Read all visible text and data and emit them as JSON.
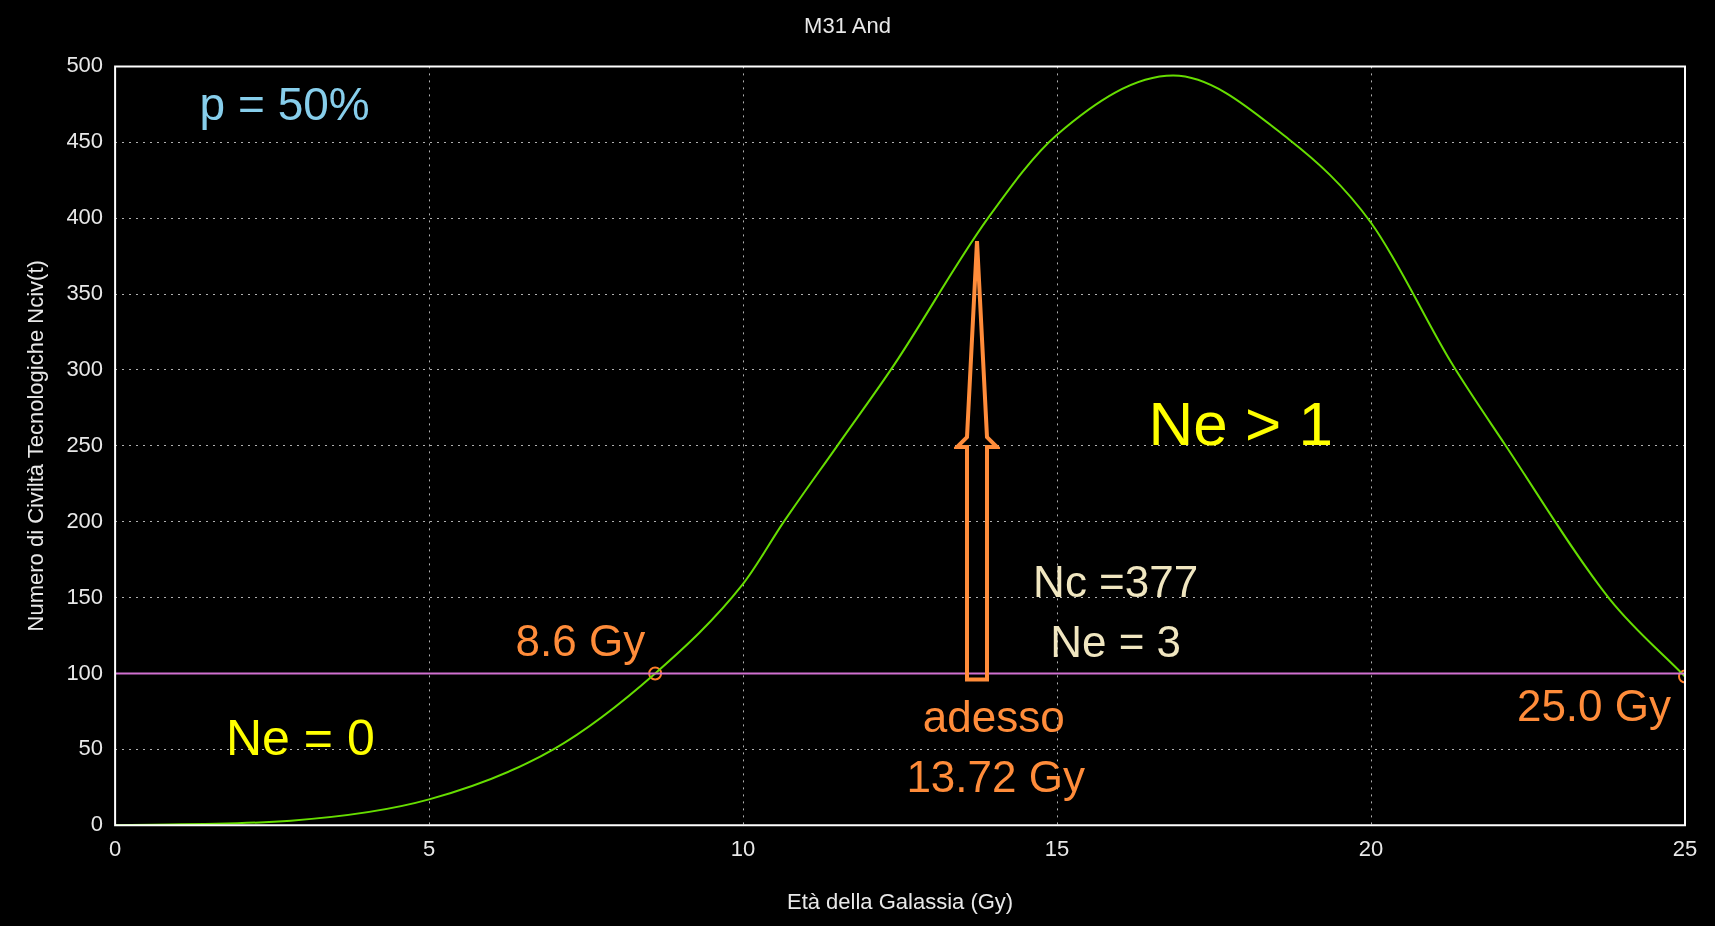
{
  "chart_data": {
    "type": "line",
    "title": "M31 And",
    "xlabel": "Età della Galassia (Gy)",
    "ylabel": "Numero di Civiltà Tecnologiche Nciv(t)",
    "xlim": [
      0,
      25
    ],
    "xticks": [
      0,
      5,
      10,
      15,
      20,
      25
    ],
    "ylim": [
      0,
      500
    ],
    "yticks": [
      0,
      50,
      100,
      150,
      200,
      250,
      300,
      350,
      400,
      450,
      500
    ],
    "grid": true,
    "legend": false,
    "series": [
      {
        "color": "#66dd00",
        "marker": "none",
        "x": [
          0,
          2.8,
          5,
          6.98,
          8.6,
          10,
          10.65,
          11.5,
          12.4,
          13.9,
          15,
          16.85,
          18.69,
          20,
          21.29,
          22.13,
          23.8,
          25
        ],
        "values": [
          0,
          3,
          17,
          50,
          100,
          159,
          200,
          250,
          303,
          400,
          455,
          494,
          452,
          397,
          304,
          251,
          149,
          98
        ]
      },
      {
        "type": "scatter",
        "color": "#ff7f2a",
        "marker": "circle",
        "x": [
          8.6,
          25
        ],
        "values": [
          100,
          98
        ]
      }
    ],
    "ref_lines": [
      {
        "axis": "y",
        "value": 100,
        "color": "#d070d0"
      }
    ],
    "annotations": [
      "p = 50%",
      "Ne = 0",
      "Ne > 1",
      {
        "text": "8.6 Gy",
        "x": 8.6,
        "y": 100
      },
      {
        "text": "25.0 Gy",
        "x": 25,
        "y": 98
      },
      "Nc =377",
      "Ne = 3",
      "adesso",
      "13.72 Gy"
    ]
  }
}
